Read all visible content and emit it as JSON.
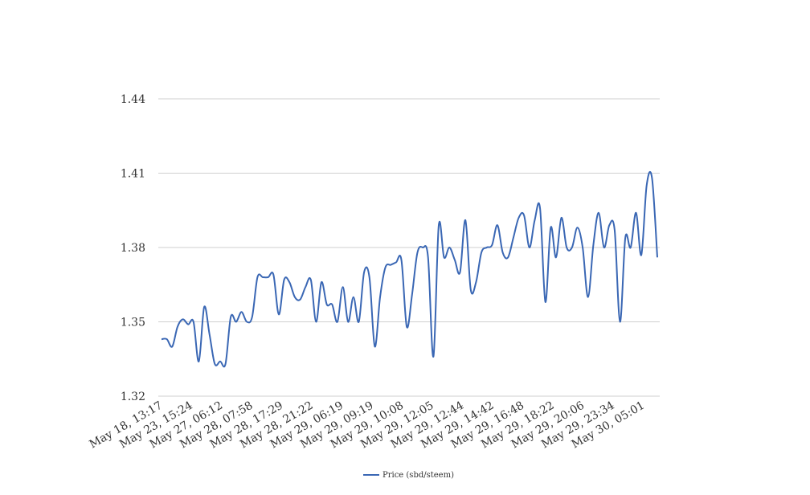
{
  "chart_data": {
    "type": "line",
    "title": "",
    "xlabel": "",
    "ylabel": "",
    "ylim": [
      1.32,
      1.44
    ],
    "yticks": [
      "1.32",
      "1.35",
      "1.38",
      "1.41",
      "1.44"
    ],
    "grid": true,
    "legend_position": "bottom-center",
    "xtick_labels": [
      "May 18, 13:17",
      "May 23, 15:24",
      "May 27, 06:12",
      "May 28, 07:58",
      "May 28, 17:29",
      "May 28, 21:22",
      "May 29, 06:19",
      "May 29, 09:19",
      "May 29, 10:08",
      "May 29, 12:05",
      "May 29, 12:44",
      "May 29, 14:42",
      "May 29, 16:48",
      "May 29, 18:22",
      "May 29, 20:06",
      "May 29, 23:34",
      "May 30, 05:01"
    ],
    "series": [
      {
        "name": "Price (sbd/steem)",
        "color": "#3a67b4",
        "values": [
          1.343,
          1.343,
          1.34,
          1.348,
          1.351,
          1.349,
          1.35,
          1.334,
          1.356,
          1.345,
          1.333,
          1.334,
          1.333,
          1.352,
          1.35,
          1.354,
          1.35,
          1.352,
          1.368,
          1.368,
          1.368,
          1.369,
          1.353,
          1.367,
          1.366,
          1.36,
          1.359,
          1.364,
          1.367,
          1.35,
          1.366,
          1.357,
          1.357,
          1.35,
          1.364,
          1.35,
          1.36,
          1.35,
          1.37,
          1.368,
          1.34,
          1.36,
          1.372,
          1.373,
          1.374,
          1.375,
          1.348,
          1.361,
          1.378,
          1.38,
          1.376,
          1.336,
          1.389,
          1.376,
          1.38,
          1.375,
          1.37,
          1.391,
          1.363,
          1.366,
          1.378,
          1.38,
          1.381,
          1.389,
          1.378,
          1.376,
          1.384,
          1.392,
          1.393,
          1.38,
          1.391,
          1.396,
          1.358,
          1.388,
          1.376,
          1.392,
          1.38,
          1.38,
          1.388,
          1.38,
          1.36,
          1.381,
          1.394,
          1.38,
          1.389,
          1.387,
          1.35,
          1.384,
          1.38,
          1.394,
          1.377,
          1.405,
          1.408,
          1.376
        ]
      }
    ]
  }
}
